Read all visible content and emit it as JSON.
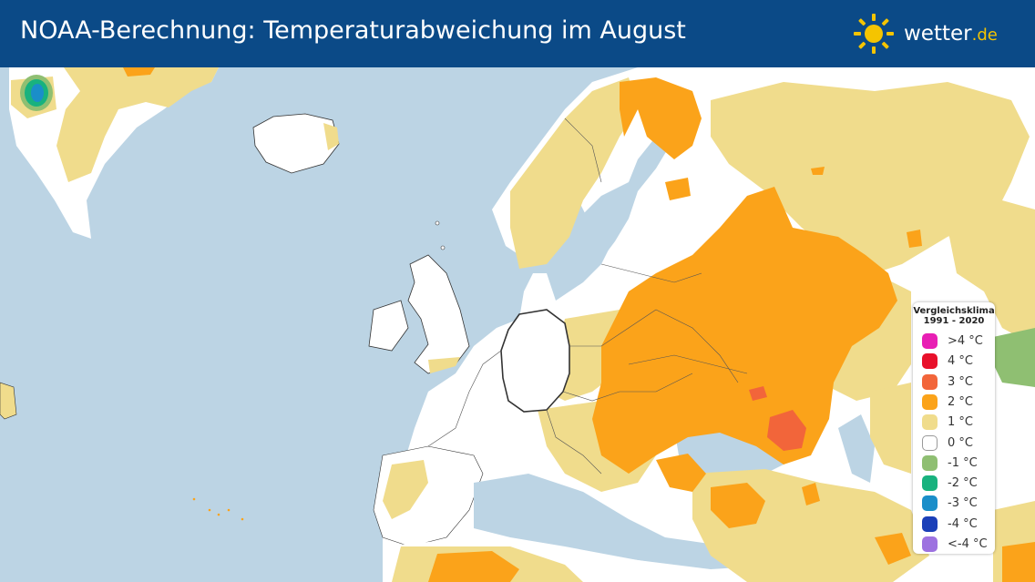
{
  "header": {
    "title": "NOAA-Berechnung: Temperaturabweichung im August",
    "logo_main": "wetter",
    "logo_tld": ".de"
  },
  "legend": {
    "title_line1": "Vergleichsklima",
    "title_line2": "1991 - 2020",
    "items": [
      {
        "label": ">4 °C",
        "color": "#e81fb4"
      },
      {
        "label": "4 °C",
        "color": "#e8102b"
      },
      {
        "label": "3 °C",
        "color": "#f2653a"
      },
      {
        "label": "2 °C",
        "color": "#fba31a"
      },
      {
        "label": "1 °C",
        "color": "#f0dc8c"
      },
      {
        "label": "0 °C",
        "color": "#ffffff"
      },
      {
        "label": "-1 °C",
        "color": "#8fbf72"
      },
      {
        "label": "-2 °C",
        "color": "#18b27e"
      },
      {
        "label": "-3 °C",
        "color": "#1a8ec9"
      },
      {
        "label": "-4 °C",
        "color": "#1b3fb8"
      },
      {
        "label": "<-4 °C",
        "color": "#9d72e0"
      }
    ]
  },
  "map": {
    "sea_color": "#bcd4e4",
    "land_color": "#ffffff",
    "highlighted_country": "Deutschland"
  }
}
